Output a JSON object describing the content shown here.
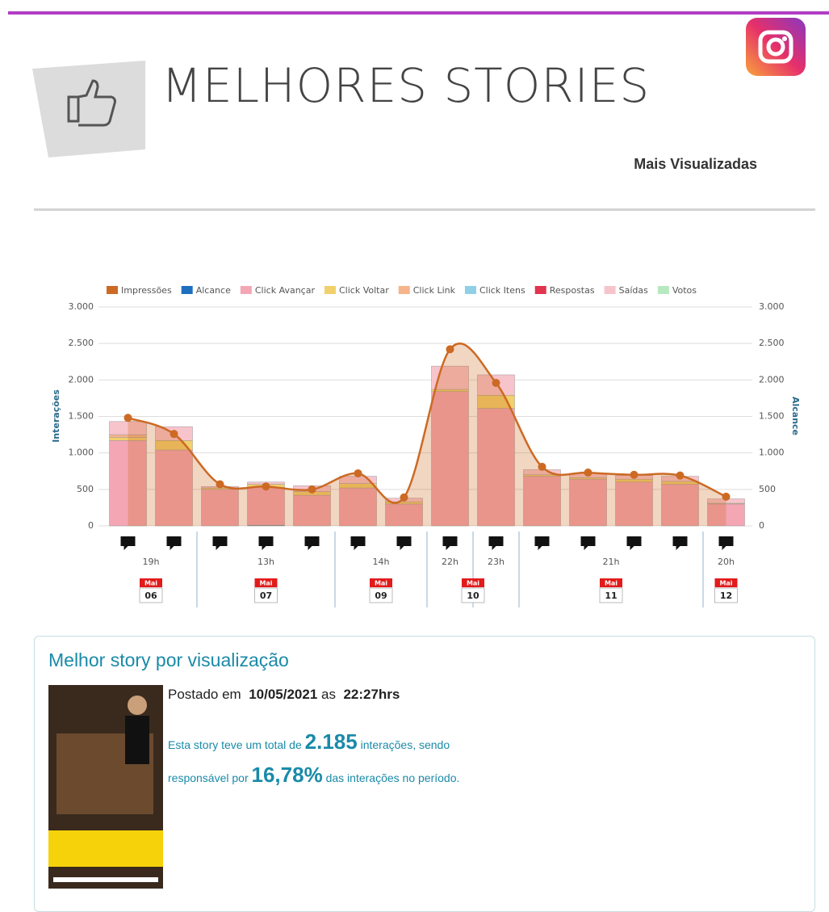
{
  "header": {
    "title": "MELHORES STORIES",
    "subtitle": "Mais Visualizadas"
  },
  "chart_data": {
    "type": "bar",
    "ylabel": "Interações",
    "y2label": "Alcance",
    "ylim": [
      0,
      3000
    ],
    "yticks": [
      0,
      {
        "value": 500,
        "label": "500"
      },
      {
        "value": 1000,
        "label": "1.000"
      },
      {
        "value": 1500,
        "label": "1.500"
      },
      {
        "value": 2000,
        "label": "2.000"
      },
      {
        "value": 2500,
        "label": "2.500"
      },
      {
        "value": 3000,
        "label": "3.000"
      }
    ],
    "y2lim": [
      0,
      3000
    ],
    "y2ticks": [
      0,
      {
        "value": 500,
        "label": "500"
      },
      {
        "value": 1000,
        "label": "1.000"
      },
      {
        "value": 1500,
        "label": "1.500"
      },
      {
        "value": 2000,
        "label": "2.000"
      },
      {
        "value": 2500,
        "label": "2.500"
      },
      {
        "value": 3000,
        "label": "3.000"
      }
    ],
    "grid": true,
    "legend": "top",
    "day_groups": [
      {
        "month": "Mai",
        "day": "06",
        "hours": [
          {
            "label": "19h",
            "stories": 2
          }
        ]
      },
      {
        "month": "Mai",
        "day": "07",
        "hours": [
          {
            "label": "13h",
            "stories": 3
          }
        ]
      },
      {
        "month": "Mai",
        "day": "09",
        "hours": [
          {
            "label": "14h",
            "stories": 2
          }
        ]
      },
      {
        "month": "Mai",
        "day": "10",
        "hours": [
          {
            "label": "22h",
            "stories": 1
          },
          {
            "label": "23h",
            "stories": 1
          }
        ]
      },
      {
        "month": "Mai",
        "day": "11",
        "hours": [
          {
            "label": "21h",
            "stories": 4
          }
        ]
      },
      {
        "month": "Mai",
        "day": "12",
        "hours": [
          {
            "label": "20h",
            "stories": 1
          }
        ]
      }
    ],
    "series": [
      {
        "name": "Impressões",
        "color": "#cc6a24",
        "axis": "y2",
        "kind": "line",
        "values": [
          1480,
          1260,
          570,
          540,
          500,
          720,
          390,
          2420,
          1960,
          810,
          730,
          700,
          690,
          400
        ]
      },
      {
        "name": "Alcance",
        "color": "#1f6fbf",
        "values": [
          0,
          0,
          0,
          10,
          0,
          0,
          0,
          0,
          0,
          0,
          0,
          0,
          0,
          0
        ]
      },
      {
        "name": "Click Avançar",
        "color": "#f4a6b4",
        "values": [
          1170,
          1040,
          500,
          520,
          420,
          520,
          300,
          1840,
          1610,
          680,
          640,
          600,
          570,
          300
        ]
      },
      {
        "name": "Click Voltar",
        "color": "#f2d06b",
        "values": [
          40,
          130,
          20,
          40,
          50,
          60,
          30,
          30,
          180,
          20,
          20,
          40,
          40,
          10
        ]
      },
      {
        "name": "Click Link",
        "color": "#f5b48a",
        "values": [
          40,
          0,
          0,
          0,
          0,
          0,
          0,
          0,
          0,
          0,
          0,
          0,
          0,
          0
        ]
      },
      {
        "name": "Click Itens",
        "color": "#8fd0e8",
        "values": [
          0,
          0,
          0,
          0,
          0,
          0,
          0,
          0,
          0,
          0,
          0,
          0,
          0,
          0
        ]
      },
      {
        "name": "Respostas",
        "color": "#e0344f",
        "values": [
          0,
          0,
          0,
          0,
          0,
          0,
          0,
          0,
          0,
          0,
          0,
          0,
          0,
          0
        ]
      },
      {
        "name": "Saídas",
        "color": "#f8c4cc",
        "values": [
          180,
          190,
          20,
          30,
          80,
          100,
          50,
          320,
          280,
          70,
          60,
          50,
          70,
          60
        ]
      },
      {
        "name": "Votos",
        "color": "#b7e9c0",
        "values": [
          0,
          0,
          0,
          0,
          0,
          0,
          0,
          0,
          0,
          0,
          0,
          0,
          0,
          0
        ]
      }
    ]
  },
  "card": {
    "title": "Melhor story por visualização",
    "posted_prefix": "Postado em",
    "date": "10/05/2021",
    "as": "as",
    "time": "22:27hrs",
    "text1": "Esta story teve um total de",
    "interactions": "2.185",
    "text2": "interações, sendo",
    "text3": "responsável por",
    "share": "16,78%",
    "text4": "das interações no período."
  }
}
